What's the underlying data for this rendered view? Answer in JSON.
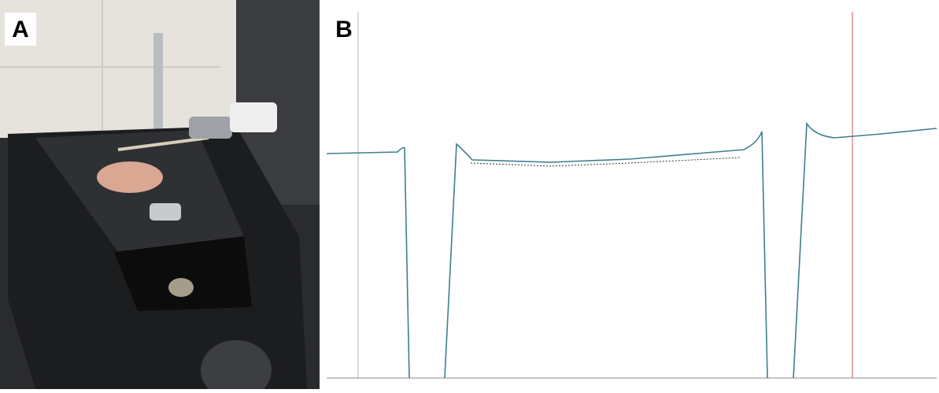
{
  "figure": {
    "panels": [
      {
        "label": "A"
      },
      {
        "label": "B"
      }
    ]
  }
}
